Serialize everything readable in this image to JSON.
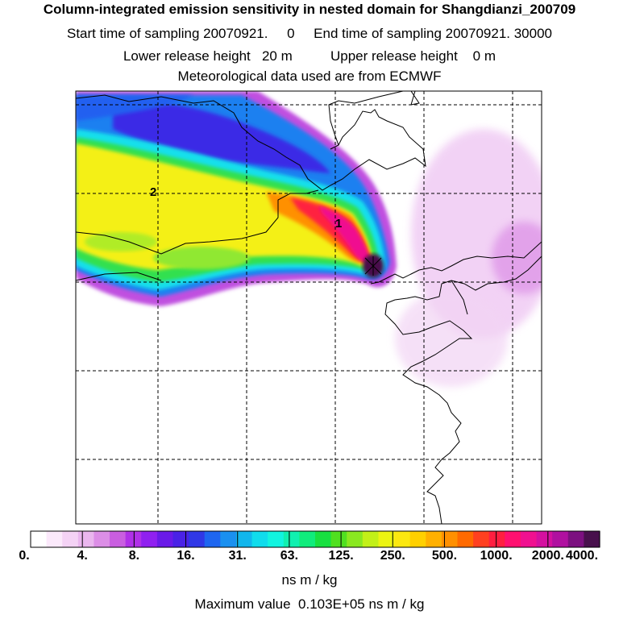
{
  "header": {
    "title": "Column-integrated emission sensitivity in nested domain for Shangdianzi_200709",
    "sampling": "Start time of sampling 20070921.     0     End time of sampling 20070921. 30000",
    "release": "Lower release height   20 m          Upper release height    0 m",
    "met": "Meteorological data used are from ECMWF"
  },
  "map": {
    "labels": [
      "1",
      "2"
    ]
  },
  "chart_data": {
    "type": "heatmap",
    "title": "Column-integrated emission sensitivity in nested domain for Shangdianzi_200709",
    "colorbar_ticks": [
      "0.",
      "4.",
      "8.",
      "16.",
      "31.",
      "63.",
      "125.",
      "250.",
      "500.",
      "1000.",
      "2000.",
      "4000."
    ],
    "colorbar_units": "ns m / kg",
    "max_value": "Maximum value  0.103E+05 ns m / kg",
    "scale": "logarithmic",
    "plume_labels": [
      "1",
      "2"
    ]
  },
  "colors": {
    "palette": [
      "#ffffff",
      "#fbe9fb",
      "#f4d2f5",
      "#eab6ee",
      "#dc8ee6",
      "#c95ee0",
      "#b030e8",
      "#9020f0",
      "#6a1ae8",
      "#4a22e6",
      "#3038e6",
      "#1e66f0",
      "#1a90f0",
      "#12b6ec",
      "#10dcec",
      "#12f4e0",
      "#10f0b0",
      "#10ec7c",
      "#18e040",
      "#50e020",
      "#8ae820",
      "#c2f018",
      "#ecf412",
      "#fce810",
      "#ffd000",
      "#ffb000",
      "#ff9000",
      "#ff6a00",
      "#ff4020",
      "#ff1f40",
      "#ff1070",
      "#f01090",
      "#d410a0",
      "#b010a0",
      "#7c1080",
      "#48104c"
    ]
  }
}
